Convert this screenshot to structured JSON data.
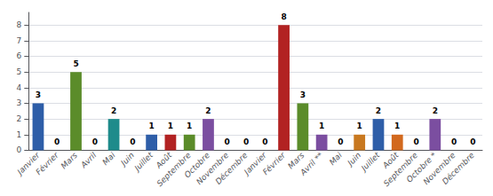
{
  "chart_data": {
    "type": "bar",
    "categories": [
      "Janvier",
      "Février",
      "Mars",
      "Avril",
      "Mai",
      "Juin",
      "Juillet",
      "Août",
      "Septembre",
      "Octobre",
      "Novembre",
      "Décembre",
      "Janvier",
      "Février",
      "Mars",
      "Avril **",
      "Mai",
      "Juin",
      "Juillet",
      "Août",
      "Septembre",
      "Octobre *",
      "Novembre",
      "Décembre"
    ],
    "values": [
      3,
      0,
      5,
      0,
      2,
      0,
      1,
      1,
      1,
      2,
      0,
      0,
      0,
      8,
      3,
      1,
      0,
      1,
      2,
      1,
      0,
      2,
      0,
      0
    ],
    "colors": [
      "#2E5EA8",
      "#B22222",
      "#5B8C2A",
      "#7B4EA0",
      "#1E8B8B",
      "#C87820",
      "#2E5EA8",
      "#B22222",
      "#5B8C2A",
      "#7B4EA0",
      "#1E8B8B",
      "#C87820",
      "#2E5EA8",
      "#B22222",
      "#5B8C2A",
      "#7B4EA0",
      "#1E8B8B",
      "#C87820",
      "#2E5EA8",
      "#D2691E",
      "#C08080",
      "#7B4EA0",
      "#1E8B8B",
      "#C87820"
    ],
    "ylim": [
      0,
      8.8
    ],
    "yticks": [
      0,
      1,
      2,
      3,
      4,
      5,
      6,
      7,
      8
    ],
    "grid": true,
    "data_labels": true
  }
}
